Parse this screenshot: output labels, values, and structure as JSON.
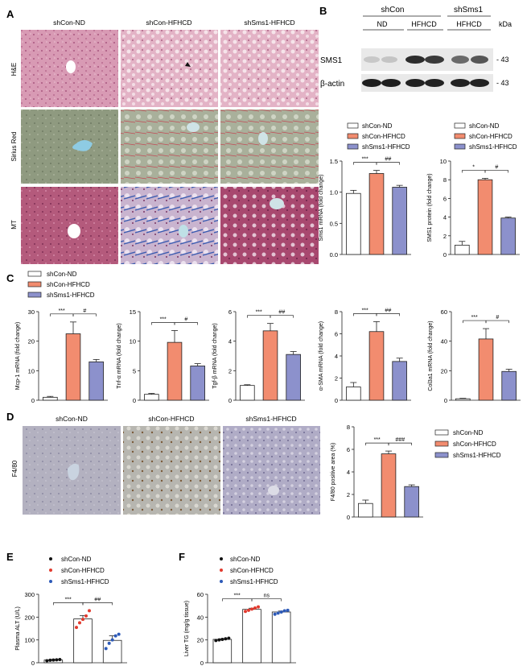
{
  "colors": {
    "nd": "#ffffff",
    "hfhcd": "#f28c6f",
    "sms1": "#8c91cc",
    "ink": "#222222",
    "he": "#d89ab4",
    "sirius": "#8f9a80",
    "mt": "#b45a7c",
    "f480": "#b3b1c0",
    "dot_nd": "#111111",
    "dot_hf": "#e23a2e",
    "dot_sm": "#2d5ab8"
  },
  "panel_labels": [
    "A",
    "B",
    "C",
    "D",
    "E",
    "F"
  ],
  "histology_A": {
    "columns": [
      "shCon-ND",
      "shCon-HFHCD",
      "shSms1-HFHCD"
    ],
    "rows": [
      "H&E",
      "Sirius Red",
      "MT"
    ]
  },
  "legend": {
    "nd": "shCon-ND",
    "hfhcd": "shCon-HFHCD",
    "sms1": "shSms1-HFHCD"
  },
  "western_B": {
    "group_shcon": "shCon",
    "group_shsms1": "shSms1",
    "lanes": [
      "ND",
      "HFHCD",
      "HFHCD"
    ],
    "kda": "kDa",
    "bands": [
      {
        "name": "SMS1",
        "mw": "- 43"
      },
      {
        "name": "β-actin",
        "mw": "- 43"
      }
    ]
  },
  "histology_D": {
    "columns": [
      "shCon-ND",
      "shCon-HFHCD",
      "shSms1-HFHCD"
    ],
    "row": "F4/80"
  },
  "chart_data": [
    {
      "id": "B1",
      "type": "bar",
      "categories": [
        "shCon-ND",
        "shCon-HFHCD",
        "shSms1-HFHCD"
      ],
      "values": [
        0.98,
        1.3,
        1.08
      ],
      "errors": [
        0.05,
        0.05,
        0.03
      ],
      "ylabel": "Sms1 mRNA (fold change)",
      "ylim": [
        0,
        1.5
      ],
      "ticks": [
        0.0,
        0.5,
        1.0,
        1.5
      ],
      "sig": [
        {
          "label": "***",
          "from": 0,
          "to": 1
        },
        {
          "label": "##",
          "from": 1,
          "to": 2
        }
      ]
    },
    {
      "id": "B2",
      "type": "bar",
      "categories": [
        "shCon-ND",
        "shCon-HFHCD",
        "shSms1-HFHCD"
      ],
      "values": [
        1.0,
        8.0,
        3.9
      ],
      "errors": [
        0.4,
        0.15,
        0.1
      ],
      "ylabel": "SMS1 protein (fold change)",
      "ylim": [
        0,
        10
      ],
      "ticks": [
        0,
        2,
        4,
        6,
        8,
        10
      ],
      "sig": [
        {
          "label": "*",
          "from": 0,
          "to": 1
        },
        {
          "label": "#",
          "from": 1,
          "to": 2
        }
      ]
    },
    {
      "id": "C1",
      "type": "bar",
      "categories": [
        "shCon-ND",
        "shCon-HFHCD",
        "shSms1-HFHCD"
      ],
      "values": [
        1.0,
        22.5,
        13.0
      ],
      "errors": [
        0.3,
        4.0,
        0.8
      ],
      "ylabel": "Mcp-1 mRNA (fold change)",
      "ylim": [
        0,
        30
      ],
      "ticks": [
        0,
        10,
        20,
        30
      ],
      "sig": [
        {
          "label": "***",
          "from": 0,
          "to": 1
        },
        {
          "label": "#",
          "from": 1,
          "to": 2
        }
      ]
    },
    {
      "id": "C2",
      "type": "bar",
      "categories": [
        "shCon-ND",
        "shCon-HFHCD",
        "shSms1-HFHCD"
      ],
      "values": [
        1.0,
        9.8,
        5.8
      ],
      "errors": [
        0.15,
        2.0,
        0.4
      ],
      "ylabel": "Tnf-α mRNA (fold change)",
      "ylim": [
        0,
        15
      ],
      "ticks": [
        0,
        5,
        10,
        15
      ],
      "sig": [
        {
          "label": "***",
          "from": 0,
          "to": 1
        },
        {
          "label": "#",
          "from": 1,
          "to": 2
        }
      ]
    },
    {
      "id": "C3",
      "type": "bar",
      "categories": [
        "shCon-ND",
        "shCon-HFHCD",
        "shSms1-HFHCD"
      ],
      "values": [
        1.0,
        4.7,
        3.1
      ],
      "errors": [
        0.05,
        0.5,
        0.2
      ],
      "ylabel": "Tgf-β mRNA (fold change)",
      "ylim": [
        0,
        6
      ],
      "ticks": [
        0,
        2,
        4,
        6
      ],
      "sig": [
        {
          "label": "***",
          "from": 0,
          "to": 1
        },
        {
          "label": "##",
          "from": 1,
          "to": 2
        }
      ]
    },
    {
      "id": "C4",
      "type": "bar",
      "categories": [
        "shCon-ND",
        "shCon-HFHCD",
        "shSms1-HFHCD"
      ],
      "values": [
        1.2,
        6.2,
        3.5
      ],
      "errors": [
        0.4,
        0.9,
        0.3
      ],
      "ylabel": "α-SMA mRNA (fold change)",
      "ylim": [
        0,
        8
      ],
      "ticks": [
        0,
        2,
        4,
        6,
        8
      ],
      "sig": [
        {
          "label": "***",
          "from": 0,
          "to": 1
        },
        {
          "label": "##",
          "from": 1,
          "to": 2
        }
      ]
    },
    {
      "id": "C5",
      "type": "bar",
      "categories": [
        "shCon-ND",
        "shCon-HFHCD",
        "shSms1-HFHCD"
      ],
      "values": [
        1.0,
        41.5,
        19.5
      ],
      "errors": [
        0.3,
        7.0,
        1.5
      ],
      "ylabel": "Col3a1 mRNA (fold change)",
      "ylim": [
        0,
        60
      ],
      "ticks": [
        0,
        20,
        40,
        60
      ],
      "sig": [
        {
          "label": "***",
          "from": 0,
          "to": 1
        },
        {
          "label": "#",
          "from": 1,
          "to": 2
        }
      ]
    },
    {
      "id": "D",
      "type": "bar",
      "categories": [
        "shCon-ND",
        "shCon-HFHCD",
        "shSms1-HFHCD"
      ],
      "values": [
        1.2,
        5.6,
        2.7
      ],
      "errors": [
        0.3,
        0.25,
        0.15
      ],
      "ylabel": "F4/80 positive area (%)",
      "ylim": [
        0,
        8
      ],
      "ticks": [
        0,
        2,
        4,
        6,
        8
      ],
      "sig": [
        {
          "label": "***",
          "from": 0,
          "to": 1
        },
        {
          "label": "###",
          "from": 1,
          "to": 2
        }
      ]
    },
    {
      "id": "E",
      "type": "bar",
      "categories": [
        "shCon-ND",
        "shCon-HFHCD",
        "shSms1-HFHCD"
      ],
      "values": [
        12,
        192,
        98
      ],
      "errors": [
        2,
        15,
        20
      ],
      "points": [
        [
          9,
          11,
          12,
          13,
          14
        ],
        [
          155,
          175,
          190,
          205,
          228
        ],
        [
          62,
          85,
          100,
          118,
          125
        ]
      ],
      "ylabel": "Plasma ALT (U/L)",
      "ylim": [
        0,
        300
      ],
      "ticks": [
        0,
        100,
        200,
        300
      ],
      "sig": [
        {
          "label": "***",
          "from": 0,
          "to": 1
        },
        {
          "label": "##",
          "from": 1,
          "to": 2
        }
      ]
    },
    {
      "id": "F",
      "type": "bar",
      "categories": [
        "shCon-ND",
        "shCon-HFHCD",
        "shSms1-HFHCD"
      ],
      "values": [
        20.5,
        46.8,
        44.5
      ],
      "errors": [
        0.5,
        1.0,
        0.8
      ],
      "points": [
        [
          19.5,
          20,
          20.5,
          21,
          21.5
        ],
        [
          45,
          46,
          47,
          48,
          49
        ],
        [
          42.5,
          43.5,
          44.5,
          45.5,
          46
        ]
      ],
      "ylabel": "Liver TG (mg/g tissue)",
      "ylim": [
        0,
        60
      ],
      "ticks": [
        0,
        20,
        40,
        60
      ],
      "sig": [
        {
          "label": "***",
          "from": 0,
          "to": 1
        },
        {
          "label": "ns",
          "from": 1,
          "to": 2
        }
      ]
    }
  ]
}
